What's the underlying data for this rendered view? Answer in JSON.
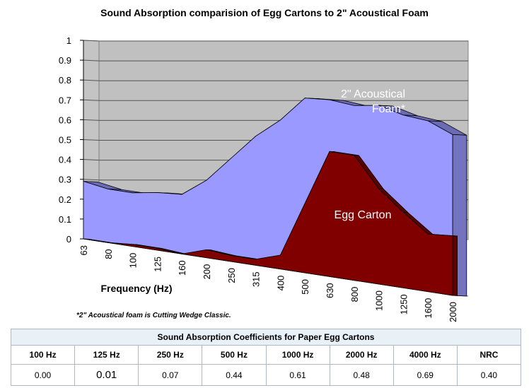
{
  "chart_data": {
    "type": "area",
    "title": "Sound Absorption comparision of Egg Cartons to 2\" Acoustical Foam",
    "xlabel": "Frequency  (Hz)",
    "ylabel": "",
    "ylim": [
      0,
      1
    ],
    "y_ticks": [
      "0",
      "0.1",
      "0.2",
      "0.3",
      "0.4",
      "0.5",
      "0.6",
      "0.7",
      "0.8",
      "0.9",
      "1"
    ],
    "categories": [
      "63",
      "80",
      "100",
      "125",
      "160",
      "200",
      "250",
      "315",
      "400",
      "500",
      "630",
      "800",
      "1000",
      "1250",
      "1600",
      "2000"
    ],
    "series": [
      {
        "name": "2\" Acoustical Foam*",
        "label_lines": [
          "2\" Acoustical",
          "Foam*"
        ],
        "color": "#9999ff",
        "values": [
          0.29,
          0.27,
          0.27,
          0.29,
          0.3,
          0.39,
          0.52,
          0.65,
          0.75,
          0.88,
          0.89,
          0.88,
          0.9,
          0.87,
          0.86,
          0.81
        ]
      },
      {
        "name": "Egg Carton",
        "label_lines": [
          "Egg Carton"
        ],
        "color": "#800000",
        "values": [
          0.0,
          0.0,
          0.01,
          0.01,
          0.0,
          0.04,
          0.03,
          0.03,
          0.07,
          0.35,
          0.63,
          0.63,
          0.48,
          0.38,
          0.29,
          0.3
        ]
      }
    ],
    "grid": true,
    "gridlines": "horizontal",
    "style": "3d-area"
  },
  "footnote": "*2\" Acoustical foam is Cutting Wedge Classic.",
  "table": {
    "caption": "Sound Absorption Coefficients for Paper Egg Cartons",
    "headers": [
      "100 Hz",
      "125 Hz",
      "250 Hz",
      "500 Hz",
      "1000 Hz",
      "2000 Hz",
      "4000 Hz",
      "NRC"
    ],
    "values": [
      "0.00",
      "0.01",
      "0.07",
      "0.44",
      "0.61",
      "0.48",
      "0.69",
      "0.40"
    ]
  }
}
